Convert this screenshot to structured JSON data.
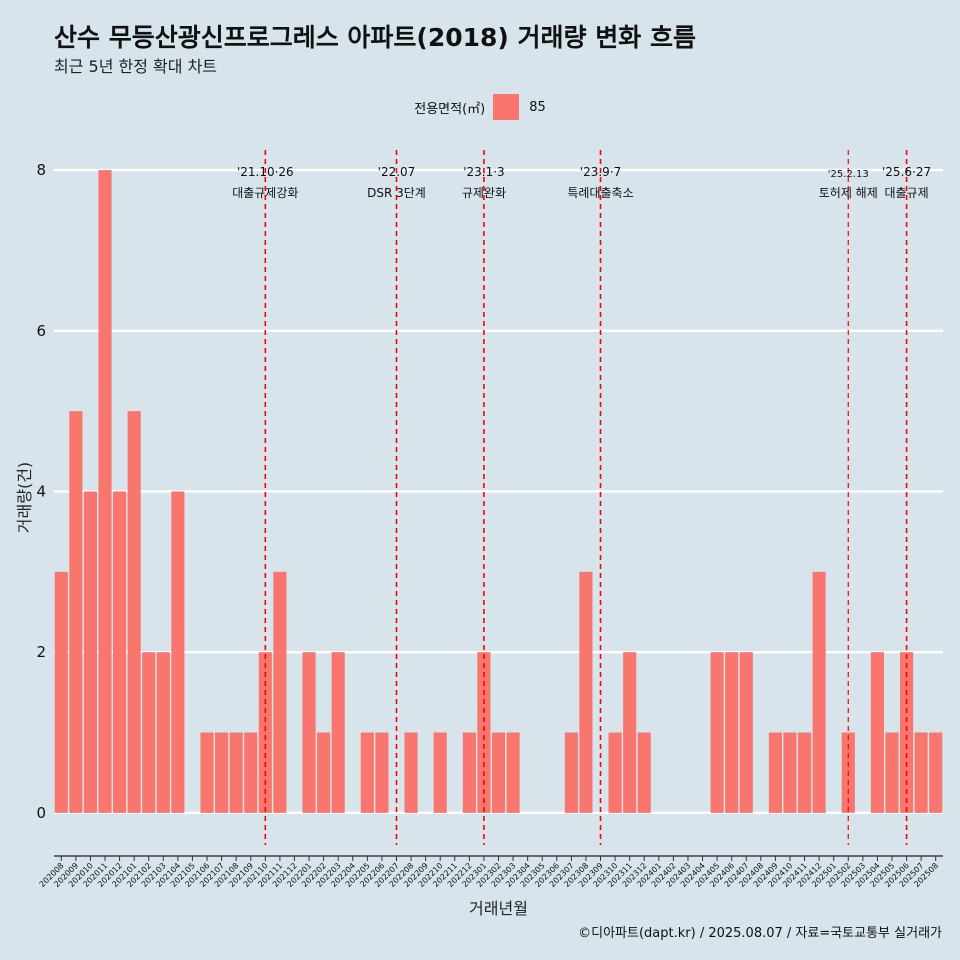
{
  "title": "산수 무등산광신프로그레스 아파트(2018) 거래량 변화 흐름",
  "subtitle": "최근 5년 한정 확대 차트",
  "legend": {
    "title": "전용면적(㎡)",
    "items": [
      {
        "label": "85",
        "color": "#f8766d"
      }
    ]
  },
  "caption": "©디아파트(dapt.kr) / 2025.08.07 / 자료=국토교통부 실거래가",
  "chart_data": {
    "type": "bar",
    "xlabel": "거래년월",
    "ylabel": "거래량(건)",
    "ylim": [
      -0.4,
      8.25
    ],
    "yticks": [
      0,
      2,
      4,
      6,
      8
    ],
    "bar_color": "#f8766d",
    "event_color": "#ff0000",
    "categories": [
      "202008",
      "202009",
      "202010",
      "202011",
      "202012",
      "202101",
      "202102",
      "202103",
      "202104",
      "202105",
      "202106",
      "202107",
      "202108",
      "202109",
      "202110",
      "202111",
      "202112",
      "202201",
      "202202",
      "202203",
      "202204",
      "202205",
      "202206",
      "202207",
      "202208",
      "202209",
      "202210",
      "202211",
      "202212",
      "202301",
      "202302",
      "202303",
      "202304",
      "202305",
      "202306",
      "202307",
      "202308",
      "202309",
      "202310",
      "202311",
      "202312",
      "202401",
      "202402",
      "202403",
      "202404",
      "202405",
      "202406",
      "202407",
      "202408",
      "202409",
      "202410",
      "202411",
      "202412",
      "202501",
      "202502",
      "202503",
      "202504",
      "202505",
      "202506",
      "202507",
      "202508"
    ],
    "series": [
      {
        "name": "85",
        "values": [
          3,
          5,
          4,
          8,
          4,
          5,
          2,
          2,
          4,
          0,
          1,
          1,
          1,
          1,
          2,
          3,
          0,
          2,
          1,
          2,
          0,
          1,
          1,
          0,
          1,
          0,
          1,
          0,
          1,
          2,
          1,
          1,
          0,
          0,
          0,
          1,
          3,
          0,
          1,
          2,
          1,
          0,
          0,
          0,
          0,
          2,
          2,
          2,
          0,
          1,
          1,
          1,
          3,
          0,
          1,
          0,
          2,
          1,
          2,
          1,
          1
        ]
      }
    ],
    "events": [
      {
        "category": "202110",
        "date_label": "'21.10·26",
        "label": "대출규제강화",
        "style": "normal"
      },
      {
        "category": "202207",
        "date_label": "'22.07",
        "label": "DSR 3단계",
        "style": "normal"
      },
      {
        "category": "202301",
        "date_label": "'23.1·3",
        "label": "규제완화",
        "style": "normal"
      },
      {
        "category": "202309",
        "date_label": "'23.9·7",
        "label": "특례대출축소",
        "style": "normal"
      },
      {
        "category": "202502",
        "date_label": "'25.2.13",
        "label": "토허제 해제",
        "style": "small"
      },
      {
        "category": "202506",
        "date_label": "'25.6·27",
        "label": "대출규제",
        "style": "normal"
      }
    ]
  }
}
